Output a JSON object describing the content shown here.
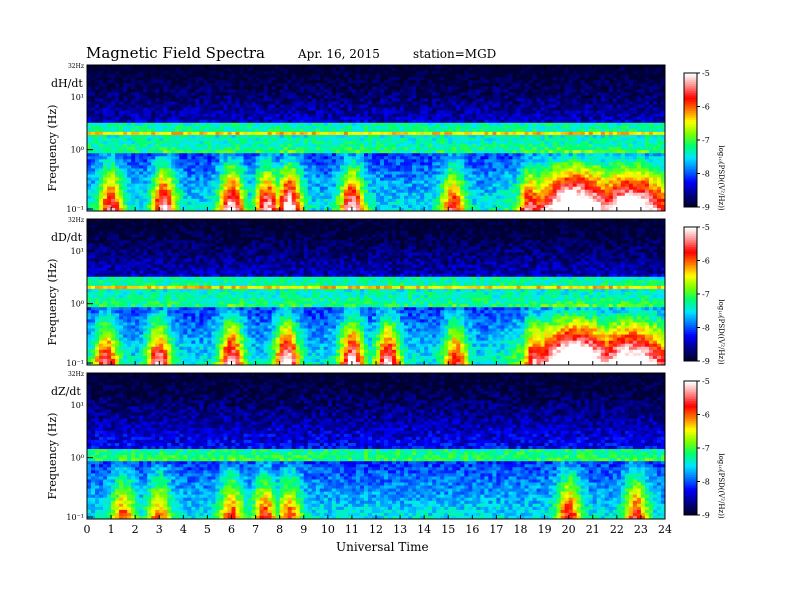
{
  "header": {
    "title": "Magnetic  Field  Spectra",
    "date": "Apr. 16, 2015",
    "station": "station=MGD"
  },
  "colors": {
    "colormap": [
      "#000033",
      "#00008c",
      "#0000ff",
      "#0078ff",
      "#00e6ff",
      "#00ff6e",
      "#7cff00",
      "#ffff00",
      "#ff7a00",
      "#ff0000",
      "#ff8a8a",
      "#ffffff"
    ]
  },
  "chart_data": [
    {
      "type": "heatmap",
      "panel": "dH/dt",
      "ylabel": "Frequency  (Hz)",
      "top_label": "32Hz",
      "yticks": [
        "10¹",
        "10⁰",
        "10⁻¹"
      ],
      "xlim": [
        0,
        24
      ],
      "xticks": [
        "0",
        "1",
        "2",
        "3",
        "4",
        "5",
        "6",
        "7",
        "8",
        "9",
        "10",
        "11",
        "12",
        "13",
        "14",
        "15",
        "16",
        "17",
        "18",
        "19",
        "20",
        "21",
        "22",
        "23",
        "24"
      ],
      "colorbar_label": "log₁₀(PSD((V²/Hz))",
      "colorbar_ticks": [
        "-5",
        "-6",
        "-7",
        "-8",
        "-9"
      ],
      "clim": [
        -9,
        -5
      ],
      "events": [
        {
          "hour": 1.0,
          "level": -6.6
        },
        {
          "hour": 3.2,
          "level": -6.3
        },
        {
          "hour": 6.0,
          "level": -6.1
        },
        {
          "hour": 7.5,
          "level": -6.3
        },
        {
          "hour": 8.4,
          "level": -5.9
        },
        {
          "hour": 11.0,
          "level": -6.2
        },
        {
          "hour": 15.2,
          "level": -6.8
        },
        {
          "hour": 18.4,
          "level": -6.6
        },
        {
          "hour": 20.3,
          "level": -5.2
        },
        {
          "hour": 22.6,
          "level": -5.6
        }
      ]
    },
    {
      "type": "heatmap",
      "panel": "dD/dt",
      "ylabel": "Frequency  (Hz)",
      "top_label": "32Hz",
      "yticks": [
        "10¹",
        "10⁰",
        "10⁻¹"
      ],
      "xlim": [
        0,
        24
      ],
      "xticks": [
        "0",
        "1",
        "2",
        "3",
        "4",
        "5",
        "6",
        "7",
        "8",
        "9",
        "10",
        "11",
        "12",
        "13",
        "14",
        "15",
        "16",
        "17",
        "18",
        "19",
        "20",
        "21",
        "22",
        "23",
        "24"
      ],
      "colorbar_label": "log₁₀(PSD((V²/Hz))",
      "colorbar_ticks": [
        "-5",
        "-6",
        "-7",
        "-8",
        "-9"
      ],
      "clim": [
        -9,
        -5
      ],
      "events": [
        {
          "hour": 0.8,
          "level": -6.6
        },
        {
          "hour": 3.0,
          "level": -6.4
        },
        {
          "hour": 6.0,
          "level": -6.2
        },
        {
          "hour": 8.3,
          "level": -6.0
        },
        {
          "hour": 11.0,
          "level": -6.1
        },
        {
          "hour": 12.5,
          "level": -6.3
        },
        {
          "hour": 15.3,
          "level": -6.8
        },
        {
          "hour": 18.6,
          "level": -6.5
        },
        {
          "hour": 20.3,
          "level": -5.1
        },
        {
          "hour": 22.6,
          "level": -5.6
        }
      ]
    },
    {
      "type": "heatmap",
      "panel": "dZ/dt",
      "ylabel": "Frequency  (Hz)",
      "top_label": "32Hz",
      "yticks": [
        "10¹",
        "10⁰",
        "10⁻¹"
      ],
      "xlim": [
        0,
        24
      ],
      "xticks": [
        "0",
        "1",
        "2",
        "3",
        "4",
        "5",
        "6",
        "7",
        "8",
        "9",
        "10",
        "11",
        "12",
        "13",
        "14",
        "15",
        "16",
        "17",
        "18",
        "19",
        "20",
        "21",
        "22",
        "23",
        "24"
      ],
      "colorbar_label": "log₁₀(PSD((V²/Hz))",
      "colorbar_ticks": [
        "-5",
        "-6",
        "-7",
        "-8",
        "-9"
      ],
      "clim": [
        -9,
        -5
      ],
      "events": [
        {
          "hour": 1.5,
          "level": -7.2
        },
        {
          "hour": 3.0,
          "level": -7.3
        },
        {
          "hour": 6.0,
          "level": -7.1
        },
        {
          "hour": 7.4,
          "level": -7.0
        },
        {
          "hour": 8.4,
          "level": -7.2
        },
        {
          "hour": 20.0,
          "level": -6.8
        },
        {
          "hour": 22.8,
          "level": -6.9
        }
      ]
    }
  ],
  "xlabel": "Universal  Time"
}
